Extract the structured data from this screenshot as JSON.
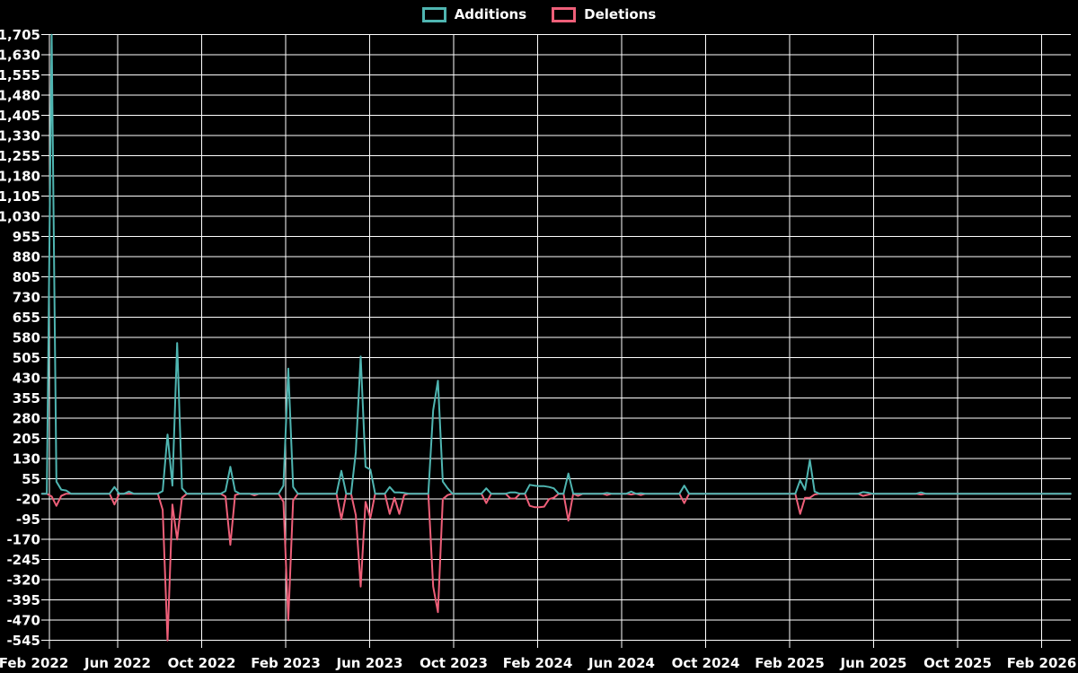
{
  "legend": {
    "items": [
      {
        "label": "Additions",
        "color": "#4fb5b1"
      },
      {
        "label": "Deletions",
        "color": "#ee5f79"
      }
    ]
  },
  "chart_data": {
    "type": "line",
    "title": "",
    "xlabel": "",
    "ylabel": "",
    "grid": true,
    "background_color": "#000000",
    "grid_color": "#ffffff",
    "text_color": "#ffffff",
    "legend_position": "top-center",
    "y_axis": {
      "range": [
        -545,
        1705
      ],
      "tick_step": 75,
      "tick_values": [
        1705,
        1630,
        1555,
        1480,
        1405,
        1330,
        1255,
        1180,
        1105,
        1030,
        955,
        880,
        805,
        730,
        655,
        580,
        505,
        430,
        355,
        280,
        205,
        130,
        55,
        -20,
        -95,
        -170,
        -245,
        -320,
        -395,
        -470,
        -545
      ],
      "tick_labels": [
        "1,705",
        "1,630",
        "1,555",
        "1,480",
        "1,405",
        "1,330",
        "1,255",
        "1,180",
        "1,105",
        "1,030",
        "955",
        "880",
        "805",
        "730",
        "655",
        "580",
        "505",
        "430",
        "355",
        "280",
        "205",
        "130",
        "55",
        "-20",
        "-95",
        "-170",
        "-245",
        "-320",
        "-395",
        "-470",
        "-545"
      ]
    },
    "x_axis": {
      "tick_labels": [
        "Feb 2022",
        "Jun 2022",
        "Oct 2022",
        "Feb 2023",
        "Jun 2023",
        "Oct 2023",
        "Feb 2024",
        "Jun 2024",
        "Oct 2024",
        "Feb 2025",
        "Jun 2025",
        "Oct 2025",
        "Feb 2026"
      ],
      "tick_months_since_feb_2022": [
        0,
        4,
        8,
        12,
        16,
        20,
        24,
        28,
        32,
        36,
        40,
        44,
        48
      ]
    },
    "series": [
      {
        "name": "Additions",
        "color": "#4fb5b1",
        "values_key": 0
      },
      {
        "name": "Deletions",
        "color": "#ee5f79",
        "values_key": 1
      }
    ],
    "weekly": {
      "start": "2022-02-13",
      "end": "2026-03-15",
      "interval_days": 7,
      "default": [
        0,
        0
      ],
      "events": {
        "2022-02-27": [
          1705,
          -10
        ],
        "2022-03-06": [
          45,
          -45
        ],
        "2022-03-13": [
          15,
          -8
        ],
        "2022-03-20": [
          12,
          0
        ],
        "2022-05-29": [
          25,
          -40
        ],
        "2022-06-19": [
          8,
          0
        ],
        "2022-08-07": [
          10,
          -60
        ],
        "2022-08-14": [
          220,
          -545
        ],
        "2022-08-21": [
          30,
          -40
        ],
        "2022-08-28": [
          560,
          -170
        ],
        "2022-09-04": [
          20,
          -15
        ],
        "2022-11-06": [
          10,
          -10
        ],
        "2022-11-13": [
          100,
          -190
        ],
        "2022-11-20": [
          10,
          -5
        ],
        "2022-12-18": [
          0,
          -6
        ],
        "2023-01-29": [
          30,
          -30
        ],
        "2023-02-05": [
          465,
          -470
        ],
        "2023-02-12": [
          25,
          -25
        ],
        "2023-04-23": [
          85,
          -95
        ],
        "2023-05-14": [
          155,
          -80
        ],
        "2023-05-21": [
          510,
          -345
        ],
        "2023-05-28": [
          100,
          -30
        ],
        "2023-06-04": [
          90,
          -90
        ],
        "2023-07-02": [
          25,
          -75
        ],
        "2023-07-09": [
          5,
          -15
        ],
        "2023-07-16": [
          5,
          -75
        ],
        "2023-07-23": [
          3,
          -5
        ],
        "2023-09-03": [
          310,
          -345
        ],
        "2023-09-10": [
          420,
          -440
        ],
        "2023-09-17": [
          45,
          -20
        ],
        "2023-09-24": [
          20,
          -5
        ],
        "2023-11-19": [
          20,
          -35
        ],
        "2023-12-24": [
          5,
          -18
        ],
        "2023-12-31": [
          5,
          -18
        ],
        "2024-01-21": [
          33,
          -45
        ],
        "2024-01-28": [
          30,
          -50
        ],
        "2024-02-04": [
          28,
          -50
        ],
        "2024-02-11": [
          28,
          -48
        ],
        "2024-02-18": [
          25,
          -20
        ],
        "2024-02-25": [
          20,
          -15
        ],
        "2024-03-17": [
          75,
          -100
        ],
        "2024-03-31": [
          0,
          -8
        ],
        "2024-05-12": [
          3,
          -5
        ],
        "2024-06-16": [
          8,
          -3
        ],
        "2024-06-30": [
          2,
          -5
        ],
        "2024-09-01": [
          30,
          -35
        ],
        "2025-02-16": [
          50,
          -75
        ],
        "2025-02-23": [
          15,
          -15
        ],
        "2025-03-02": [
          125,
          -15
        ],
        "2025-03-09": [
          8,
          -3
        ],
        "2025-05-18": [
          6,
          -8
        ],
        "2025-05-25": [
          4,
          -4
        ],
        "2025-08-10": [
          5,
          -3
        ]
      }
    }
  }
}
